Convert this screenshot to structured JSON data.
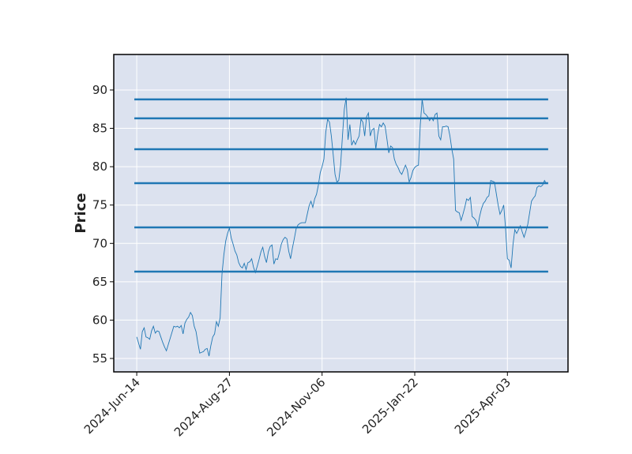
{
  "chart_data": {
    "type": "line",
    "ylabel": "Price",
    "values": [
      57.8,
      57.0,
      56.2,
      58.5,
      59.0,
      57.8,
      57.7,
      57.5,
      58.6,
      59.2,
      58.3,
      58.6,
      58.5,
      57.8,
      57.1,
      56.5,
      56.0,
      56.8,
      57.6,
      58.4,
      59.2,
      59.1,
      59.2,
      59.0,
      59.3,
      58.2,
      59.6,
      60.1,
      60.4,
      61.0,
      60.6,
      59.2,
      58.5,
      57.0,
      55.7,
      55.8,
      55.9,
      56.2,
      56.3,
      55.3,
      56.7,
      57.8,
      58.2,
      59.8,
      59.2,
      60.3,
      66.0,
      68.5,
      70.3,
      71.3,
      72.0,
      70.7,
      69.9,
      69.0,
      68.5,
      67.5,
      67.0,
      66.8,
      67.4,
      66.6,
      67.5,
      67.6,
      68.0,
      66.9,
      66.2,
      67.0,
      67.9,
      68.9,
      69.5,
      68.3,
      67.5,
      68.9,
      69.6,
      69.8,
      67.3,
      68.0,
      67.9,
      68.8,
      69.9,
      70.5,
      70.8,
      70.6,
      69.0,
      68.0,
      69.4,
      70.6,
      71.9,
      72.4,
      72.6,
      72.7,
      72.7,
      72.7,
      73.8,
      74.9,
      75.5,
      74.7,
      75.8,
      76.4,
      77.6,
      79.2,
      80.0,
      81.0,
      84.5,
      86.2,
      85.8,
      84.0,
      81.6,
      79.0,
      78.0,
      78.2,
      80.2,
      84.0,
      87.5,
      89.0,
      83.5,
      85.5,
      82.8,
      83.4,
      82.9,
      83.5,
      84.0,
      86.2,
      85.8,
      84.0,
      86.5,
      87.0,
      84.0,
      84.8,
      85.0,
      82.3,
      84.2,
      85.5,
      85.2,
      85.7,
      85.3,
      83.6,
      81.8,
      82.7,
      82.5,
      81.0,
      80.3,
      79.9,
      79.3,
      79.0,
      79.6,
      80.2,
      79.6,
      78.0,
      78.6,
      79.5,
      79.9,
      80.1,
      80.2,
      85.5,
      88.8,
      87.0,
      86.8,
      86.5,
      86.0,
      86.4,
      86.0,
      86.8,
      87.0,
      84.0,
      83.5,
      85.2,
      85.2,
      85.3,
      85.2,
      84.0,
      82.3,
      81.0,
      74.3,
      74.1,
      74.0,
      73.0,
      73.8,
      74.7,
      75.8,
      75.6,
      76.0,
      73.5,
      73.3,
      73.0,
      72.2,
      73.5,
      74.5,
      75.2,
      75.5,
      76.0,
      76.2,
      78.2,
      78.1,
      78.0,
      76.5,
      75.0,
      73.8,
      74.3,
      75.0,
      72.0,
      68.0,
      67.8,
      66.8,
      69.8,
      71.8,
      71.3,
      71.8,
      72.3,
      71.5,
      70.8,
      71.6,
      72.5,
      74.0,
      75.5,
      75.9,
      76.2,
      77.3,
      77.5,
      77.4,
      77.6,
      78.2,
      77.8
    ],
    "color": "#1f77b4",
    "hlines": {
      "values": [
        88.77,
        86.3,
        82.28,
        77.85,
        72.09,
        66.32
      ],
      "color": "#1f77b4"
    },
    "xlim": [
      -12.4,
      232.7
    ],
    "xticks": [
      {
        "value": 0,
        "label": "2024-Jun-14"
      },
      {
        "value": 50,
        "label": "2024-Aug-27"
      },
      {
        "value": 100,
        "label": "2024-Nov-06"
      },
      {
        "value": 150,
        "label": "2025-Jan-22"
      },
      {
        "value": 200,
        "label": "2025-Apr-03"
      }
    ],
    "ylim": [
      53.25,
      94.63
    ],
    "yticks": [
      55,
      60,
      65,
      70,
      75,
      80,
      85,
      90
    ],
    "grid": true
  }
}
